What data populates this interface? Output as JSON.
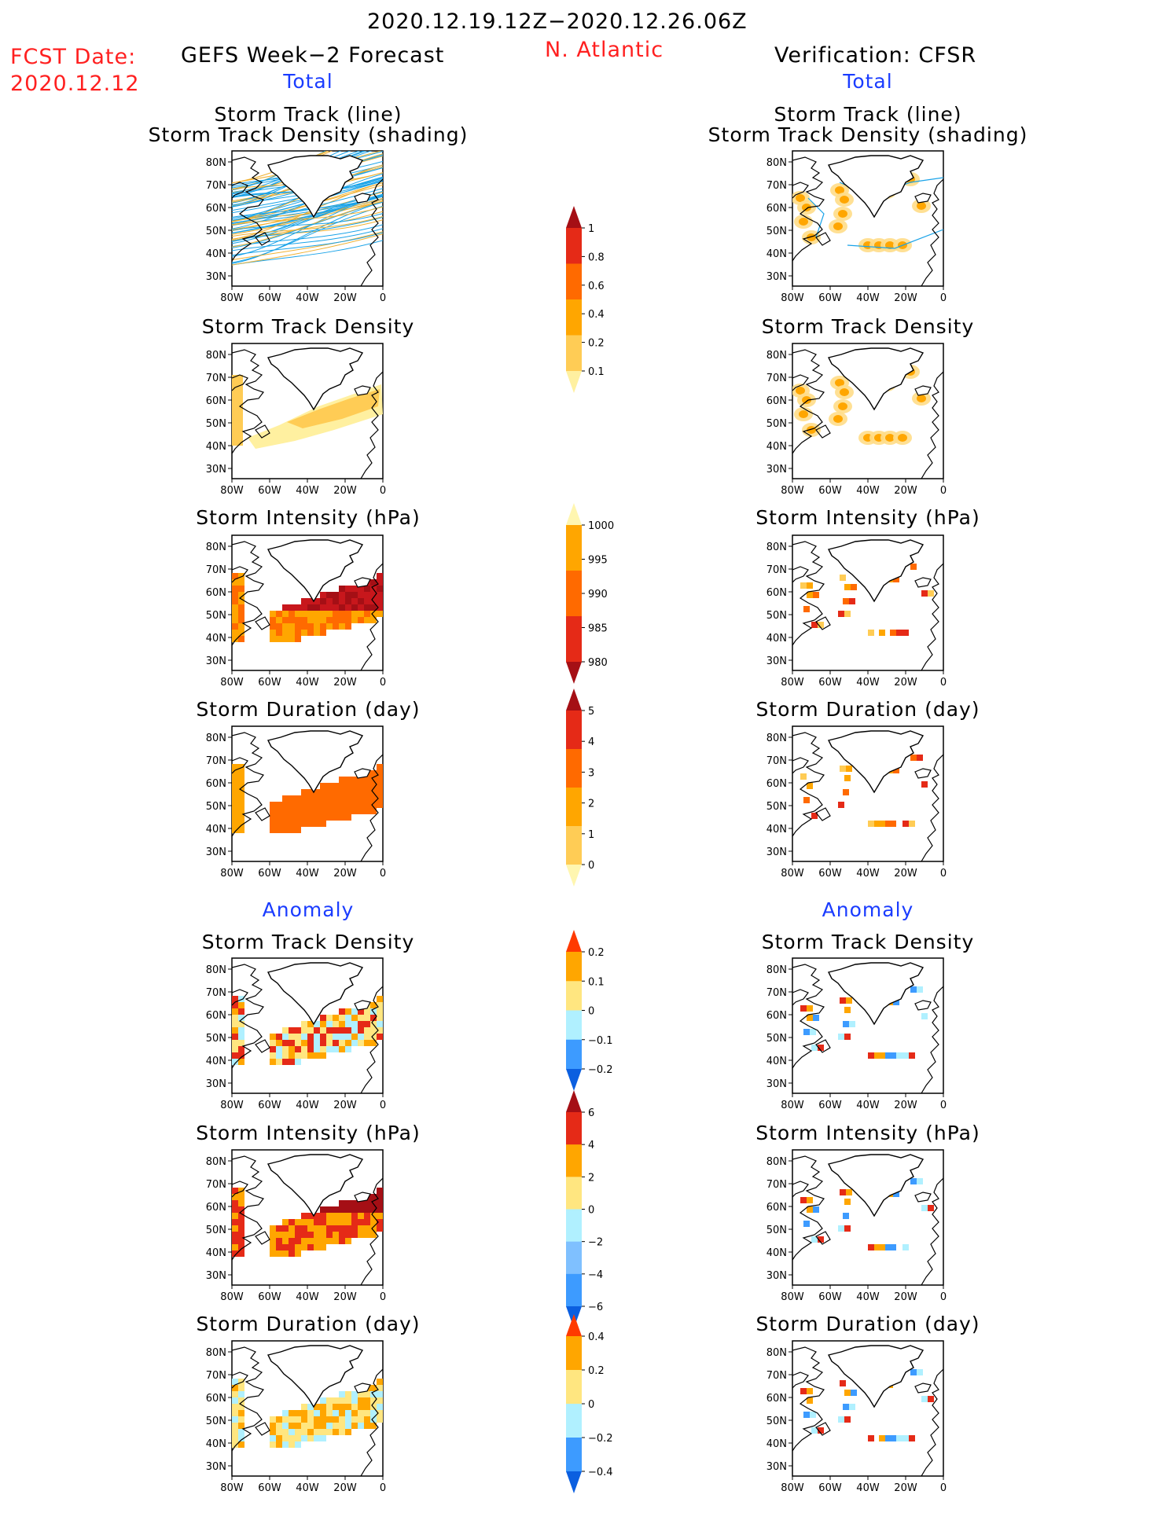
{
  "header": {
    "date_range": "2020.12.19.12Z−2020.12.26.06Z",
    "fcst_label": "FCST Date:",
    "fcst_date": "2020.12.12",
    "region": "N. Atlantic",
    "left_model": "GEFS Week−2 Forecast",
    "right_model": "Verification: CFSR"
  },
  "sections": {
    "total": "Total",
    "anomaly": "Anomaly"
  },
  "panel_titles": {
    "track_line": "Storm Track (line)",
    "track_shading": "Storm Track Density (shading)",
    "density": "Storm Track Density",
    "intensity": "Storm Intensity (hPa)",
    "duration": "Storm Duration (day)"
  },
  "axes": {
    "lat_ticks": [
      "80N",
      "70N",
      "60N",
      "50N",
      "40N",
      "30N"
    ],
    "lon_ticks": [
      "80W",
      "60W",
      "40W",
      "20W",
      "0"
    ]
  },
  "colorbars": [
    {
      "id": "density",
      "labels": [
        "1",
        "0.8",
        "0.6",
        "0.4",
        "0.2",
        "0.1"
      ],
      "colors": [
        "#a50f15",
        "#e52a17",
        "#ff6a00",
        "#ffa600",
        "#ffcc55",
        "#fff0a0"
      ]
    },
    {
      "id": "intensity",
      "labels": [
        "1000",
        "995",
        "990",
        "985",
        "980"
      ],
      "colors": [
        "#fff6b0",
        "#ffa600",
        "#ff6a00",
        "#e52a17",
        "#a50f15"
      ]
    },
    {
      "id": "duration",
      "labels": [
        "5",
        "4",
        "3",
        "2",
        "1",
        "0"
      ],
      "colors": [
        "#a50f15",
        "#e52a17",
        "#ff6a00",
        "#ffa600",
        "#ffcc55",
        "#fff6b0"
      ]
    },
    {
      "id": "anom_density",
      "labels": [
        "0.2",
        "0.1",
        "0",
        "−0.1",
        "−0.2"
      ],
      "colors": [
        "#ff3a00",
        "#ffa600",
        "#ffe680",
        "#b0f0ff",
        "#3d9bff",
        "#0b5fe0"
      ]
    },
    {
      "id": "anom_intensity",
      "labels": [
        "6",
        "4",
        "2",
        "0",
        "−2",
        "−4",
        "−6"
      ],
      "colors": [
        "#a50f15",
        "#e52a17",
        "#ffa600",
        "#ffe680",
        "#b0f0ff",
        "#7fc0ff",
        "#3d9bff",
        "#0b5fe0"
      ]
    },
    {
      "id": "anom_duration",
      "labels": [
        "0.4",
        "0.2",
        "0",
        "−0.2",
        "−0.4"
      ],
      "colors": [
        "#ff3a00",
        "#ffa600",
        "#ffe680",
        "#b0f0ff",
        "#3d9bff",
        "#0b5fe0"
      ]
    }
  ]
}
